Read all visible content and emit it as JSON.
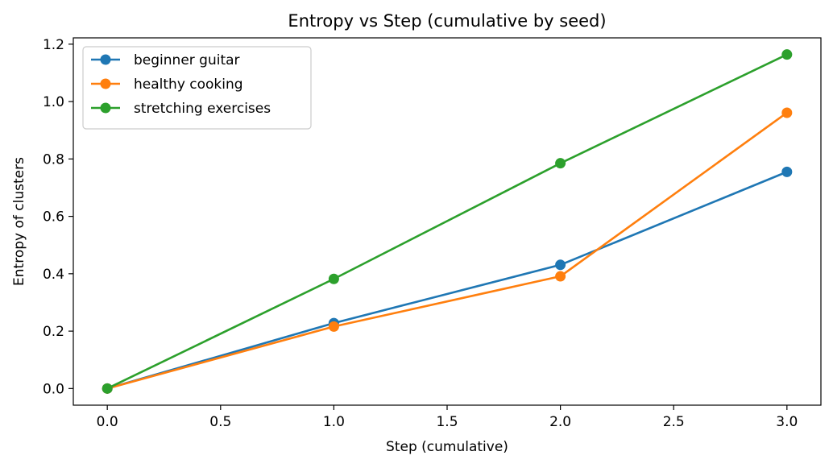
{
  "chart_data": {
    "type": "line",
    "title": "Entropy vs Step (cumulative by seed)",
    "xlabel": "Step (cumulative)",
    "ylabel": "Entropy of clusters",
    "x": [
      0,
      1,
      2,
      3
    ],
    "xlim": [
      -0.15,
      3.15
    ],
    "ylim": [
      -0.058,
      1.222
    ],
    "xticks": [
      0.0,
      0.5,
      1.0,
      1.5,
      2.0,
      2.5,
      3.0
    ],
    "xtick_labels": [
      "0.0",
      "0.5",
      "1.0",
      "1.5",
      "2.0",
      "2.5",
      "3.0"
    ],
    "yticks": [
      0.0,
      0.2,
      0.4,
      0.6,
      0.8,
      1.0,
      1.2
    ],
    "ytick_labels": [
      "0.0",
      "0.2",
      "0.4",
      "0.6",
      "0.8",
      "1.0",
      "1.2"
    ],
    "grid": false,
    "legend_position": "top-left",
    "series": [
      {
        "name": "beginner guitar",
        "color": "#1f77b4",
        "values": [
          0.0,
          0.228,
          0.431,
          0.755
        ]
      },
      {
        "name": "healthy cooking",
        "color": "#ff7f0e",
        "values": [
          0.0,
          0.216,
          0.391,
          0.961
        ]
      },
      {
        "name": "stretching exercises",
        "color": "#2ca02c",
        "values": [
          0.0,
          0.382,
          0.785,
          1.164
        ]
      }
    ]
  }
}
